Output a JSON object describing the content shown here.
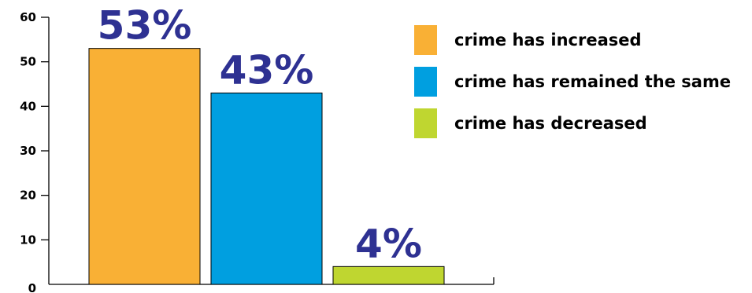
{
  "chart_data": {
    "type": "bar",
    "categories": [
      "crime has increased",
      "crime has remained the same",
      "crime has decreased"
    ],
    "values": [
      53,
      43,
      4
    ],
    "data_labels": [
      "53%",
      "43%",
      "4%"
    ],
    "colors": [
      "#f9b035",
      "#009fe0",
      "#bfd630"
    ],
    "label_color": "#2e3192",
    "ylim": [
      0,
      60
    ],
    "yticks": [
      0,
      10,
      20,
      30,
      40,
      50,
      60
    ],
    "title": "",
    "xlabel": "",
    "ylabel": "",
    "grid": false,
    "legend": "top-right"
  }
}
